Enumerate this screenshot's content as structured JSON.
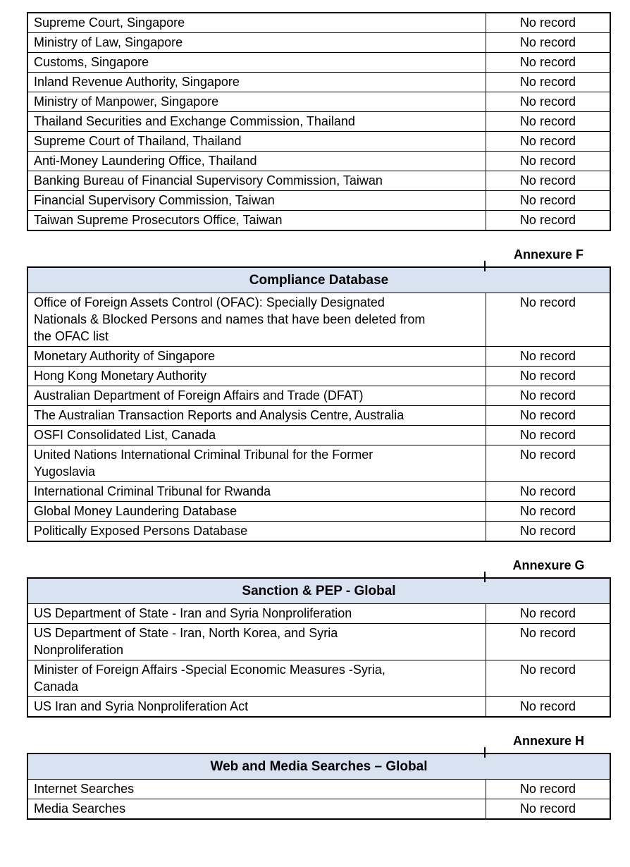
{
  "page": {
    "kind": "screening-report-page",
    "result_value": "No record",
    "colors": {
      "header_bg": "#d9e2f1",
      "border": "#000000",
      "text": "#000000",
      "page_bg": "#ffffff"
    }
  },
  "tables": [
    {
      "annexure": null,
      "title": null,
      "rows": [
        {
          "source": "Supreme Court, Singapore",
          "result": "No record"
        },
        {
          "source": "Ministry of Law, Singapore",
          "result": "No record"
        },
        {
          "source": "Customs, Singapore",
          "result": "No record"
        },
        {
          "source": "Inland Revenue Authority, Singapore",
          "result": "No record"
        },
        {
          "source": "Ministry of Manpower, Singapore",
          "result": "No record"
        },
        {
          "source": "Thailand Securities and Exchange Commission, Thailand",
          "result": "No record"
        },
        {
          "source": "Supreme Court of Thailand, Thailand",
          "result": "No record"
        },
        {
          "source": "Anti-Money Laundering Office, Thailand",
          "result": "No record"
        },
        {
          "source": "Banking Bureau of Financial Supervisory Commission, Taiwan",
          "result": "No record"
        },
        {
          "source": "Financial Supervisory Commission, Taiwan",
          "result": "No record"
        },
        {
          "source": "Taiwan Supreme Prosecutors Office, Taiwan",
          "result": "No record"
        }
      ]
    },
    {
      "annexure": "Annexure F",
      "title": "Compliance Database",
      "rows": [
        {
          "source": "Office of Foreign Assets Control (OFAC): Specially Designated\nNationals & Blocked Persons and names that have been deleted from\nthe OFAC list",
          "result": "No record"
        },
        {
          "source": "Monetary Authority of Singapore",
          "result": "No record"
        },
        {
          "source": "Hong Kong Monetary Authority",
          "result": "No record"
        },
        {
          "source": "Australian Department of Foreign Affairs and Trade (DFAT)",
          "result": "No record"
        },
        {
          "source": "The Australian Transaction Reports and Analysis Centre, Australia",
          "result": "No record"
        },
        {
          "source": "OSFI Consolidated List, Canada",
          "result": "No record"
        },
        {
          "source": "United Nations International Criminal Tribunal for the Former\nYugoslavia",
          "result": "No record"
        },
        {
          "source": "International Criminal Tribunal for Rwanda",
          "result": "No record"
        },
        {
          "source": "Global Money Laundering Database",
          "result": "No record"
        },
        {
          "source": "Politically Exposed Persons Database",
          "result": "No record"
        }
      ]
    },
    {
      "annexure": "Annexure G",
      "title": "Sanction & PEP - Global",
      "rows": [
        {
          "source": "US Department of State - Iran and Syria Nonproliferation",
          "result": "No record"
        },
        {
          "source": "US Department of State - Iran, North Korea, and Syria\nNonproliferation",
          "result": "No record"
        },
        {
          "source": "Minister of Foreign Affairs -Special Economic Measures -Syria,\nCanada",
          "result": "No record"
        },
        {
          "source": "US Iran and Syria Nonproliferation Act",
          "result": "No record"
        }
      ]
    },
    {
      "annexure": "Annexure H",
      "title": "Web and Media Searches – Global",
      "rows": [
        {
          "source": "Internet Searches",
          "result": "No record"
        },
        {
          "source": "Media Searches",
          "result": "No record"
        }
      ]
    }
  ]
}
